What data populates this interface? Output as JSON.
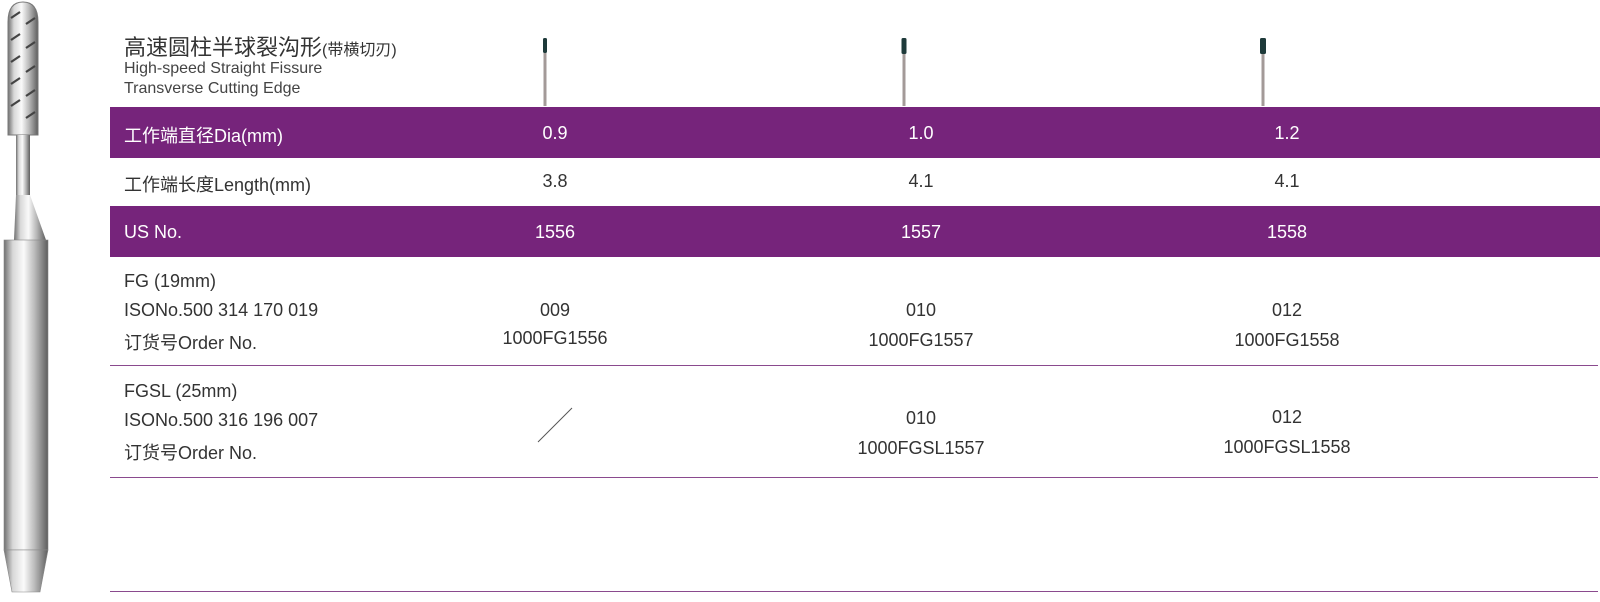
{
  "colors": {
    "accent": "#76247b",
    "line": "#8a4a8e",
    "tip": "#1e3a3a",
    "shank": "#a39a98"
  },
  "title": {
    "cn": "高速圆柱半球裂沟形",
    "cn_sub": "(带横切刃)",
    "en_line1": "High-speed Straight Fissure",
    "en_line2": "Transverse Cutting Edge"
  },
  "rows": {
    "dia": {
      "label": "工作端直径Dia(mm)",
      "values": [
        "0.9",
        "1.0",
        "1.2"
      ]
    },
    "length": {
      "label": "工作端长度Length(mm)",
      "values": [
        "3.8",
        "4.1",
        "4.1"
      ]
    },
    "us": {
      "label": "US No.",
      "values": [
        "1556",
        "1557",
        "1558"
      ]
    },
    "fg": {
      "label1": "FG (19mm)",
      "label2": "ISONo.500 314 170 019",
      "label3": "订货号Order No.",
      "iso": [
        "009",
        "010",
        "012"
      ],
      "order": [
        "1000FG1556",
        "1000FG1557",
        "1000FG1558"
      ]
    },
    "fgsl": {
      "label1": "FGSL (25mm)",
      "label2": "ISONo.500 316 196 007",
      "label3": "订货号Order No.",
      "iso": [
        "010",
        "012"
      ],
      "order": [
        "1000FGSL1557",
        "1000FGSL1558"
      ]
    }
  }
}
